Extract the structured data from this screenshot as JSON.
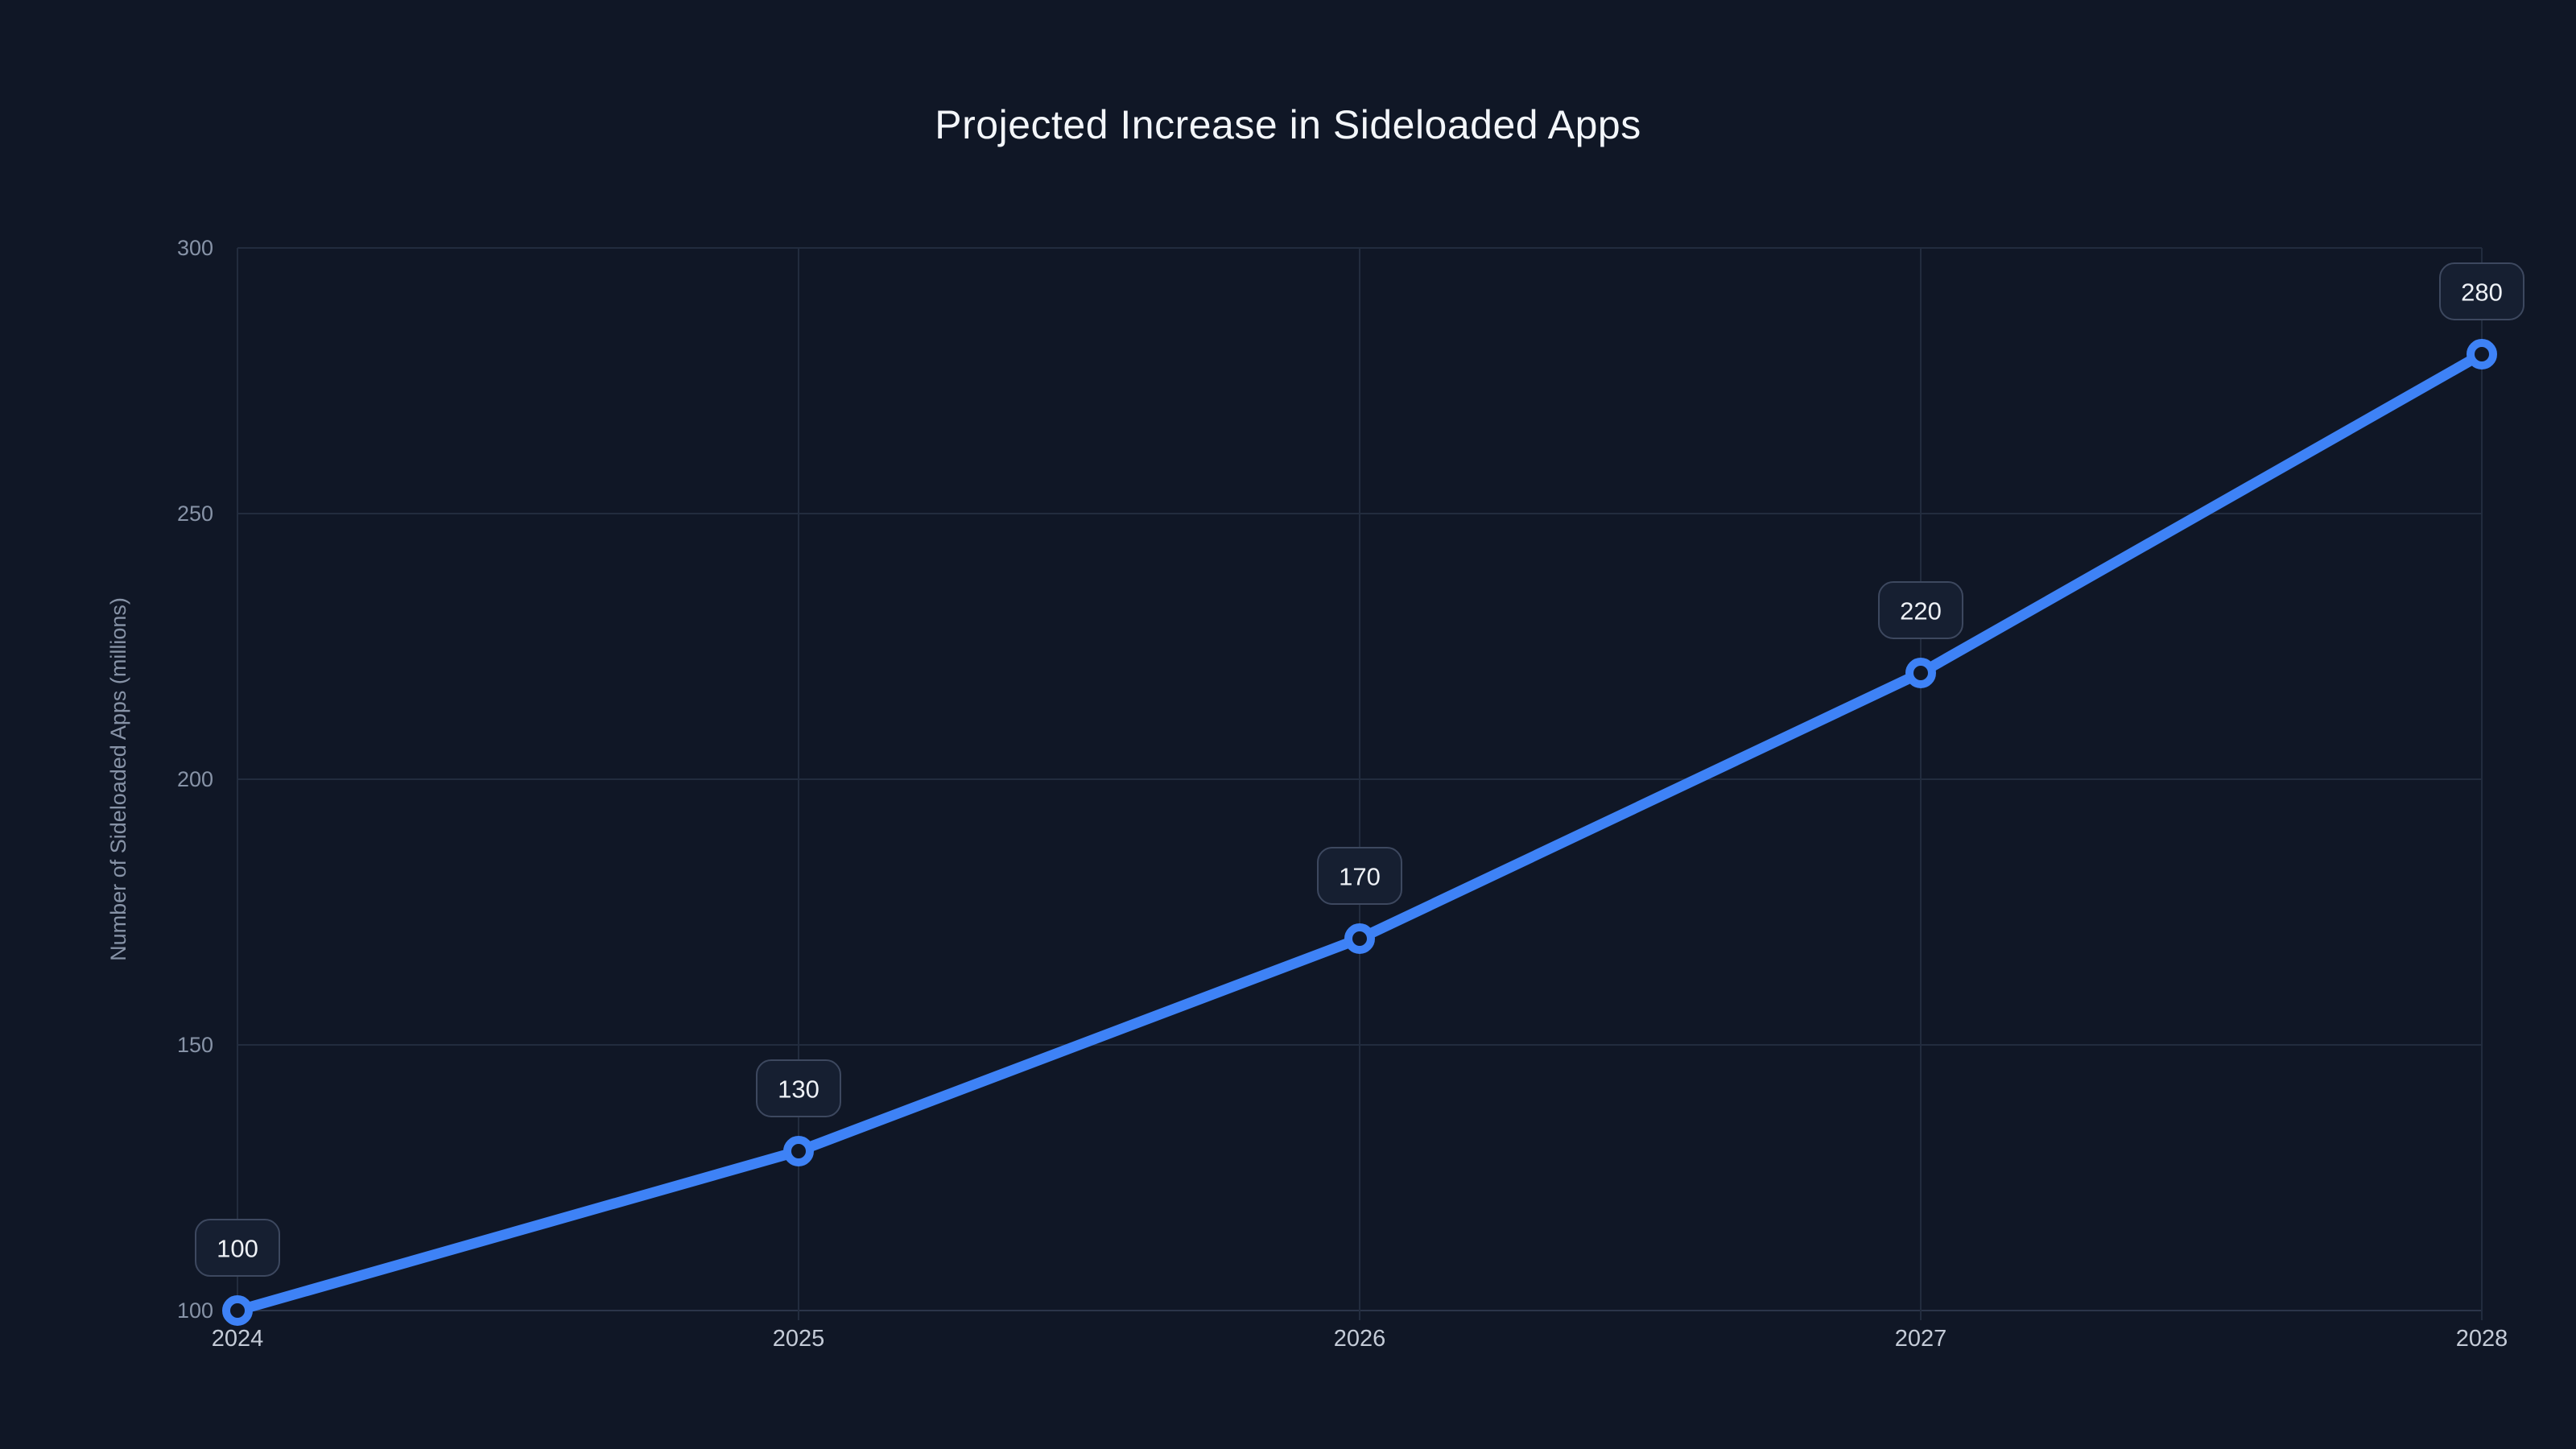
{
  "page": {
    "background_color": "#101726"
  },
  "chart_data": {
    "type": "line",
    "title": "Projected Increase in Sideloaded Apps",
    "xlabel": "",
    "ylabel": "Number of Sideloaded Apps (millions)",
    "categories": [
      "2024",
      "2025",
      "2026",
      "2027",
      "2028"
    ],
    "series": [
      {
        "name": "Sideloaded Apps",
        "values": [
          100,
          130,
          170,
          220,
          280
        ],
        "point_labels": [
          "100",
          "130",
          "170",
          "220",
          "280"
        ]
      }
    ],
    "ylim": [
      100,
      300
    ],
    "yticks": [
      100,
      150,
      200,
      250,
      300
    ],
    "ytick_labels": [
      "100",
      "150",
      "200",
      "250",
      "300"
    ],
    "grid": true,
    "legend": false,
    "colors": {
      "line": "#3e82f6",
      "marker_ring": "#3e82f6",
      "marker_fill": "#101726",
      "gridline": "#222c3e",
      "axis_line": "#2b3549",
      "ytick_text": "#8793a7",
      "xtick_text": "#c4cbd7",
      "axis_title_text": "#8793a7",
      "title_text": "#f3f6fa",
      "label_box_fill": "#161f31",
      "label_box_border": "#3d485f",
      "label_text": "#eef1f6"
    }
  }
}
